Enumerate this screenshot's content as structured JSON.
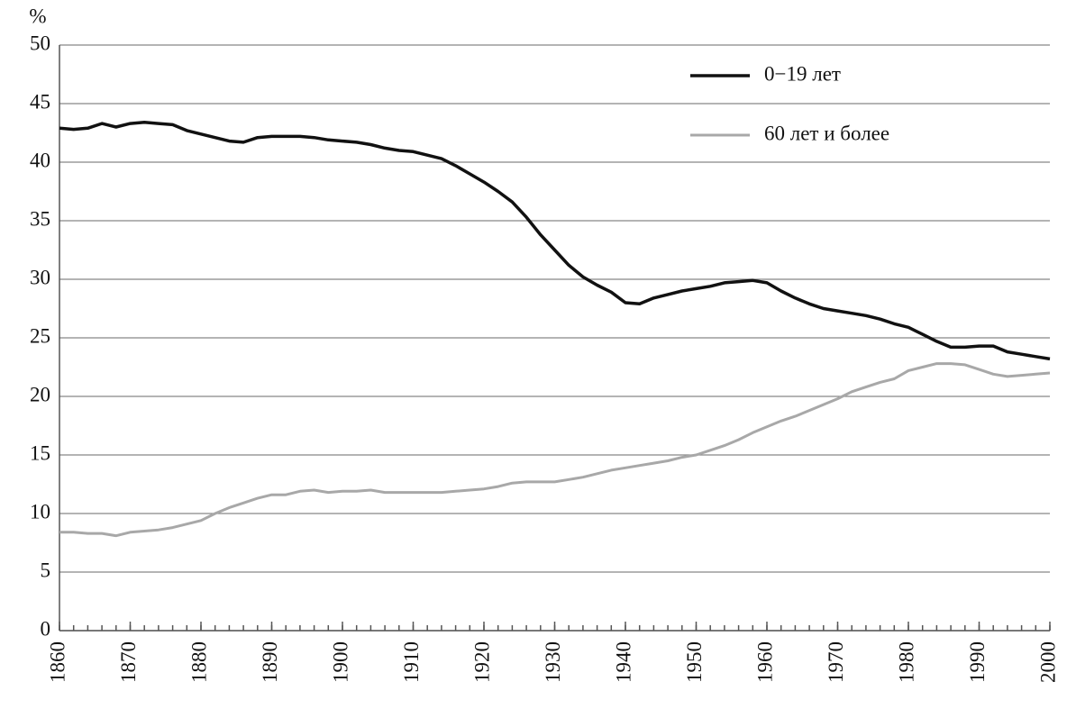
{
  "chart_data": {
    "type": "line",
    "y_label": "%",
    "x": [
      1860,
      1862,
      1864,
      1866,
      1868,
      1870,
      1872,
      1874,
      1876,
      1878,
      1880,
      1882,
      1884,
      1886,
      1888,
      1890,
      1892,
      1894,
      1896,
      1898,
      1900,
      1902,
      1904,
      1906,
      1908,
      1910,
      1912,
      1914,
      1916,
      1918,
      1920,
      1922,
      1924,
      1926,
      1928,
      1930,
      1932,
      1934,
      1936,
      1938,
      1940,
      1942,
      1944,
      1946,
      1948,
      1950,
      1952,
      1954,
      1956,
      1958,
      1960,
      1962,
      1964,
      1966,
      1968,
      1970,
      1972,
      1974,
      1976,
      1978,
      1980,
      1982,
      1984,
      1986,
      1988,
      1990,
      1992,
      1994,
      1996,
      1998,
      2000
    ],
    "series": [
      {
        "name": "0−19 лет",
        "color": "#111111",
        "values": [
          42.9,
          42.8,
          42.9,
          43.3,
          43.0,
          43.3,
          43.4,
          43.3,
          43.2,
          42.7,
          42.4,
          42.1,
          41.8,
          41.7,
          42.1,
          42.2,
          42.2,
          42.2,
          42.1,
          41.9,
          41.8,
          41.7,
          41.5,
          41.2,
          41.0,
          40.9,
          40.6,
          40.3,
          39.7,
          39.0,
          38.3,
          37.5,
          36.6,
          35.3,
          33.8,
          32.5,
          31.2,
          30.2,
          29.5,
          28.9,
          28.0,
          27.9,
          28.4,
          28.7,
          29.0,
          29.2,
          29.4,
          29.7,
          29.8,
          29.9,
          29.7,
          29.0,
          28.4,
          27.9,
          27.5,
          27.3,
          27.1,
          26.9,
          26.6,
          26.2,
          25.9,
          25.3,
          24.7,
          24.2,
          24.2,
          24.3,
          24.3,
          23.8,
          23.6,
          23.4,
          23.2
        ]
      },
      {
        "name": "60 лет и более",
        "color": "#a8a8a8",
        "values": [
          8.4,
          8.4,
          8.3,
          8.3,
          8.1,
          8.4,
          8.5,
          8.6,
          8.8,
          9.1,
          9.4,
          10.0,
          10.5,
          10.9,
          11.3,
          11.6,
          11.6,
          11.9,
          12.0,
          11.8,
          11.9,
          11.9,
          12.0,
          11.8,
          11.8,
          11.8,
          11.8,
          11.8,
          11.9,
          12.0,
          12.1,
          12.3,
          12.6,
          12.7,
          12.7,
          12.7,
          12.9,
          13.1,
          13.4,
          13.7,
          13.9,
          14.1,
          14.3,
          14.5,
          14.8,
          15.0,
          15.4,
          15.8,
          16.3,
          16.9,
          17.4,
          17.9,
          18.3,
          18.8,
          19.3,
          19.8,
          20.4,
          20.8,
          21.2,
          21.5,
          22.2,
          22.5,
          22.8,
          22.8,
          22.7,
          22.3,
          21.9,
          21.7,
          21.8,
          21.9,
          22.0
        ]
      }
    ],
    "xlim": [
      1860,
      2000
    ],
    "xticks": [
      1860,
      1870,
      1880,
      1890,
      1900,
      1910,
      1920,
      1930,
      1940,
      1950,
      1960,
      1970,
      1980,
      1990,
      2000
    ],
    "ylim": [
      0,
      50
    ],
    "yticks": [
      0,
      5,
      10,
      15,
      20,
      25,
      30,
      35,
      40,
      45,
      50
    ],
    "grid": true,
    "legend": "upper right"
  }
}
